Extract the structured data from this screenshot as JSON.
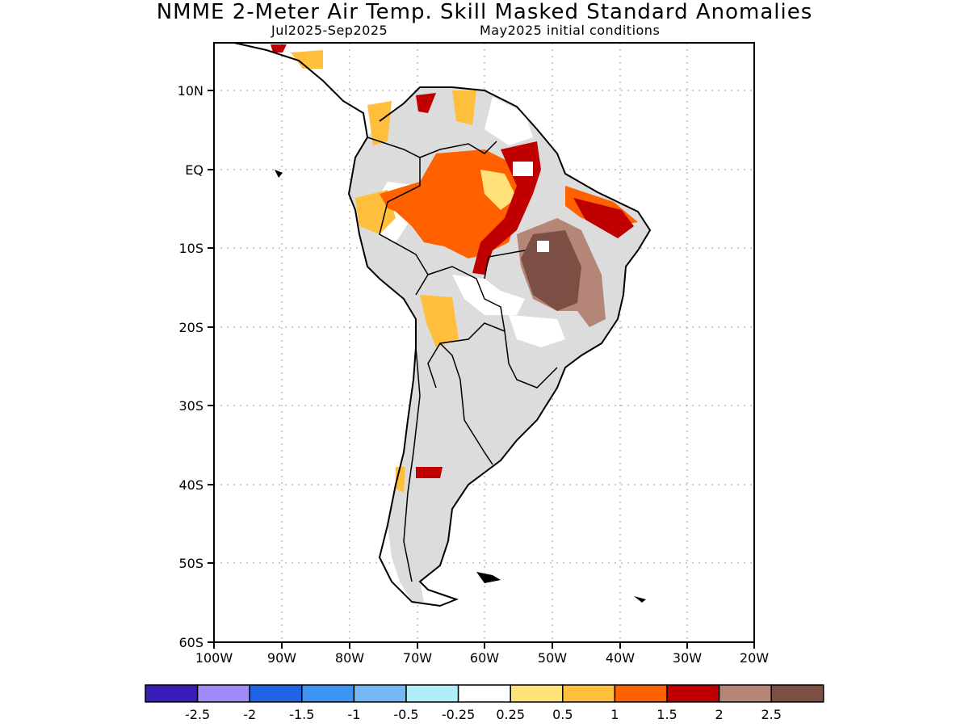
{
  "title": "NMME 2-Meter Air Temp. Skill Masked Standard Anomalies",
  "subtitle_left": "Jul2025-Sep2025",
  "subtitle_right": "May2025 initial conditions",
  "axes": {
    "lat_ticks": [
      "10N",
      "EQ",
      "10S",
      "20S",
      "30S",
      "40S",
      "50S",
      "60S"
    ],
    "lon_ticks": [
      "100W",
      "90W",
      "80W",
      "70W",
      "60W",
      "50W",
      "40W",
      "30W",
      "20W"
    ]
  },
  "colorbar": {
    "colors": [
      "#3a1db6",
      "#9f8af7",
      "#1f64e4",
      "#3d94f2",
      "#76b7f6",
      "#b0eef9",
      "#ffffff",
      "#ffe27a",
      "#ffbe3c",
      "#ff6000",
      "#c00000",
      "#b58578",
      "#7b4f43"
    ],
    "labels": [
      "-2.5",
      "-2",
      "-1.5",
      "-1",
      "-0.5",
      "-0.25",
      "0.25",
      "0.5",
      "1",
      "1.5",
      "2",
      "2.5"
    ]
  },
  "legend_colors": {
    "no_skill_mask": "#dcdcdc",
    "land_outline": "#000000"
  }
}
